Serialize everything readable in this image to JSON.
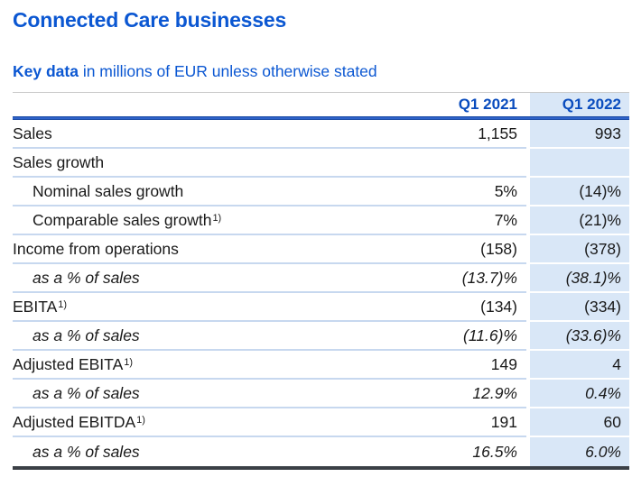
{
  "page": {
    "title": "Connected Care businesses",
    "subtitle_bold": "Key data",
    "subtitle_rest": " in millions of EUR unless otherwise stated"
  },
  "colors": {
    "brand_blue": "#0b57d2",
    "header_blue": "#0a4cbe",
    "column_highlight": "#d9e7f7",
    "row_separator": "#c7d8ef",
    "bottom_rule": "#3b4046",
    "top_rule": "#c9c9c9",
    "text": "#1a1a1a"
  },
  "table": {
    "columns": [
      {
        "label": "Q1 2021"
      },
      {
        "label": "Q1 2022"
      }
    ],
    "rows": [
      {
        "label": "Sales",
        "sup": "",
        "indent": false,
        "italic": false,
        "q1_2021": "1,155",
        "q1_2022": "993"
      },
      {
        "label": "Sales growth",
        "sup": "",
        "indent": false,
        "italic": false,
        "q1_2021": "",
        "q1_2022": ""
      },
      {
        "label": "Nominal sales growth",
        "sup": "",
        "indent": true,
        "italic": false,
        "q1_2021": "5%",
        "q1_2022": "(14)%"
      },
      {
        "label": "Comparable sales growth",
        "sup": "1)",
        "indent": true,
        "italic": false,
        "q1_2021": "7%",
        "q1_2022": "(21)%"
      },
      {
        "label": "Income from operations",
        "sup": "",
        "indent": false,
        "italic": false,
        "q1_2021": "(158)",
        "q1_2022": "(378)"
      },
      {
        "label": "as a % of sales",
        "sup": "",
        "indent": true,
        "italic": true,
        "q1_2021": "(13.7)%",
        "q1_2022": "(38.1)%"
      },
      {
        "label": "EBITA",
        "sup": "1)",
        "indent": false,
        "italic": false,
        "q1_2021": "(134)",
        "q1_2022": "(334)"
      },
      {
        "label": "as a % of sales",
        "sup": "",
        "indent": true,
        "italic": true,
        "q1_2021": "(11.6)%",
        "q1_2022": "(33.6)%"
      },
      {
        "label": "Adjusted EBITA",
        "sup": "1)",
        "indent": false,
        "italic": false,
        "q1_2021": "149",
        "q1_2022": "4"
      },
      {
        "label": "as a % of sales",
        "sup": "",
        "indent": true,
        "italic": true,
        "q1_2021": "12.9%",
        "q1_2022": "0.4%"
      },
      {
        "label": "Adjusted EBITDA",
        "sup": "1)",
        "indent": false,
        "italic": false,
        "q1_2021": "191",
        "q1_2022": "60"
      },
      {
        "label": "as a % of sales",
        "sup": "",
        "indent": true,
        "italic": true,
        "q1_2021": "16.5%",
        "q1_2022": "6.0%"
      }
    ]
  }
}
